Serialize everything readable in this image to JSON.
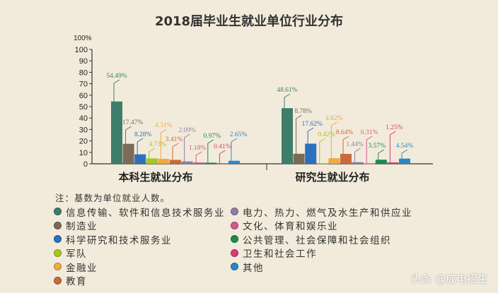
{
  "chart_data": {
    "type": "bar",
    "title": "2018届毕业生就业单位行业分布",
    "ylabel": "100%",
    "ylim": [
      0,
      100
    ],
    "yticks": [
      0,
      10,
      20,
      30,
      40,
      50,
      60,
      70,
      80,
      90,
      100
    ],
    "categories": [
      "本科生就业分布",
      "研究生就业分布"
    ],
    "series": [
      {
        "name": "信息传输、软件和信息技术服务业",
        "color": "#3f7d6b",
        "values": [
          54.49,
          48.61
        ],
        "labels": [
          "54.49%",
          "48.61%"
        ]
      },
      {
        "name": "制造业",
        "color": "#7b6a55",
        "values": [
          17.47,
          8.78
        ],
        "labels": [
          "17.47%",
          "8.78%"
        ]
      },
      {
        "name": "科学研究和技术服务业",
        "color": "#2b70bd",
        "values": [
          8.28,
          17.62
        ],
        "labels": [
          "8.28%",
          "17.62%"
        ]
      },
      {
        "name": "军队",
        "color": "#a9c523",
        "values": [
          4.73,
          0.42
        ],
        "labels": [
          "4.73%",
          "0.42%"
        ]
      },
      {
        "name": "金融业",
        "color": "#f0aa40",
        "values": [
          4.31,
          4.82
        ],
        "labels": [
          "4.31%",
          "4.82%"
        ]
      },
      {
        "name": "教育",
        "color": "#c96a3a",
        "values": [
          3.41,
          8.64
        ],
        "labels": [
          "3.41%",
          "8.64%"
        ]
      },
      {
        "name": "电力、热力、燃气及水生产和供应业",
        "color": "#8f7fa8",
        "values": [
          2.09,
          1.44
        ],
        "labels": [
          "2.09%",
          "1.44%"
        ]
      },
      {
        "name": "文化、体育和娱乐业",
        "color": "#cf5a8c",
        "values": [
          1.18,
          0.31
        ],
        "labels": [
          "1.18%",
          "0.31%"
        ]
      },
      {
        "name": "公共管理、社会保障和社会组织",
        "color": "#1e8a4b",
        "values": [
          0.97,
          3.57
        ],
        "labels": [
          "0.97%",
          "3.57%"
        ]
      },
      {
        "name": "卫生和社会工作",
        "color": "#d83b78",
        "values": [
          0.41,
          1.25
        ],
        "labels": [
          "0.41%",
          "1.25%"
        ]
      },
      {
        "name": "其他",
        "color": "#2a87c9",
        "values": [
          2.65,
          4.54
        ],
        "labels": [
          "2.65%",
          "4.54%"
        ]
      }
    ],
    "grid": false,
    "legend": "bottom"
  },
  "note": "注：基数为单位就业人数。",
  "watermark": "头条 @成电招生"
}
